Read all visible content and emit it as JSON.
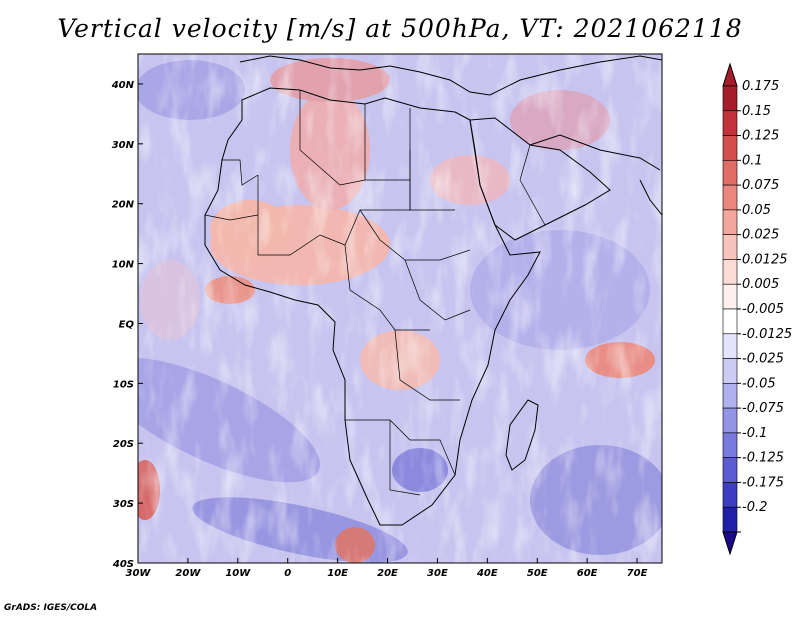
{
  "title": "Vertical velocity [m/s] at 500hPa, VT: 2021062118",
  "credit": "GrADS: IGES/COLA",
  "map": {
    "lon_range": [
      -30,
      75
    ],
    "lat_range": [
      -40,
      45
    ],
    "lat_ticks": [
      {
        "value": 40,
        "label": "40N"
      },
      {
        "value": 30,
        "label": "30N"
      },
      {
        "value": 20,
        "label": "20N"
      },
      {
        "value": 10,
        "label": "10N"
      },
      {
        "value": 0,
        "label": "EQ"
      },
      {
        "value": -10,
        "label": "10S"
      },
      {
        "value": -20,
        "label": "20S"
      },
      {
        "value": -30,
        "label": "30S"
      },
      {
        "value": -40,
        "label": "40S"
      }
    ],
    "lon_ticks": [
      {
        "value": -30,
        "label": "30W"
      },
      {
        "value": -20,
        "label": "20W"
      },
      {
        "value": -10,
        "label": "10W"
      },
      {
        "value": 0,
        "label": "0"
      },
      {
        "value": 10,
        "label": "10E"
      },
      {
        "value": 20,
        "label": "20E"
      },
      {
        "value": 30,
        "label": "30E"
      },
      {
        "value": 40,
        "label": "40E"
      },
      {
        "value": 50,
        "label": "50E"
      },
      {
        "value": 60,
        "label": "60E"
      },
      {
        "value": 70,
        "label": "70E"
      }
    ]
  },
  "colorbar": {
    "levels": [
      {
        "label": "0.175",
        "color": "#a51c2a"
      },
      {
        "label": "0.15",
        "color": "#c2323b"
      },
      {
        "label": "0.125",
        "color": "#d4504e"
      },
      {
        "label": "0.1",
        "color": "#e06c66"
      },
      {
        "label": "0.075",
        "color": "#ea8880"
      },
      {
        "label": "0.05",
        "color": "#f2a69c"
      },
      {
        "label": "0.025",
        "color": "#f7c3ba"
      },
      {
        "label": "0.0125",
        "color": "#fbdcd5"
      },
      {
        "label": "0.005",
        "color": "#fdefeb"
      },
      {
        "label": "-0.005",
        "color": "#ffffff"
      },
      {
        "label": "-0.0125",
        "color": "#e4e4fa"
      },
      {
        "label": "-0.025",
        "color": "#cbcbf4"
      },
      {
        "label": "-0.05",
        "color": "#b0b0ee"
      },
      {
        "label": "-0.075",
        "color": "#9494e6"
      },
      {
        "label": "-0.1",
        "color": "#7a7ade"
      },
      {
        "label": "-0.125",
        "color": "#5c5cd2"
      },
      {
        "label": "-0.175",
        "color": "#3d3dc2"
      },
      {
        "label": "-0.2",
        "color": "#2020aa"
      }
    ],
    "top_arrow_color": "#a51c2a",
    "bottom_arrow_color": "#1a0a8a"
  }
}
